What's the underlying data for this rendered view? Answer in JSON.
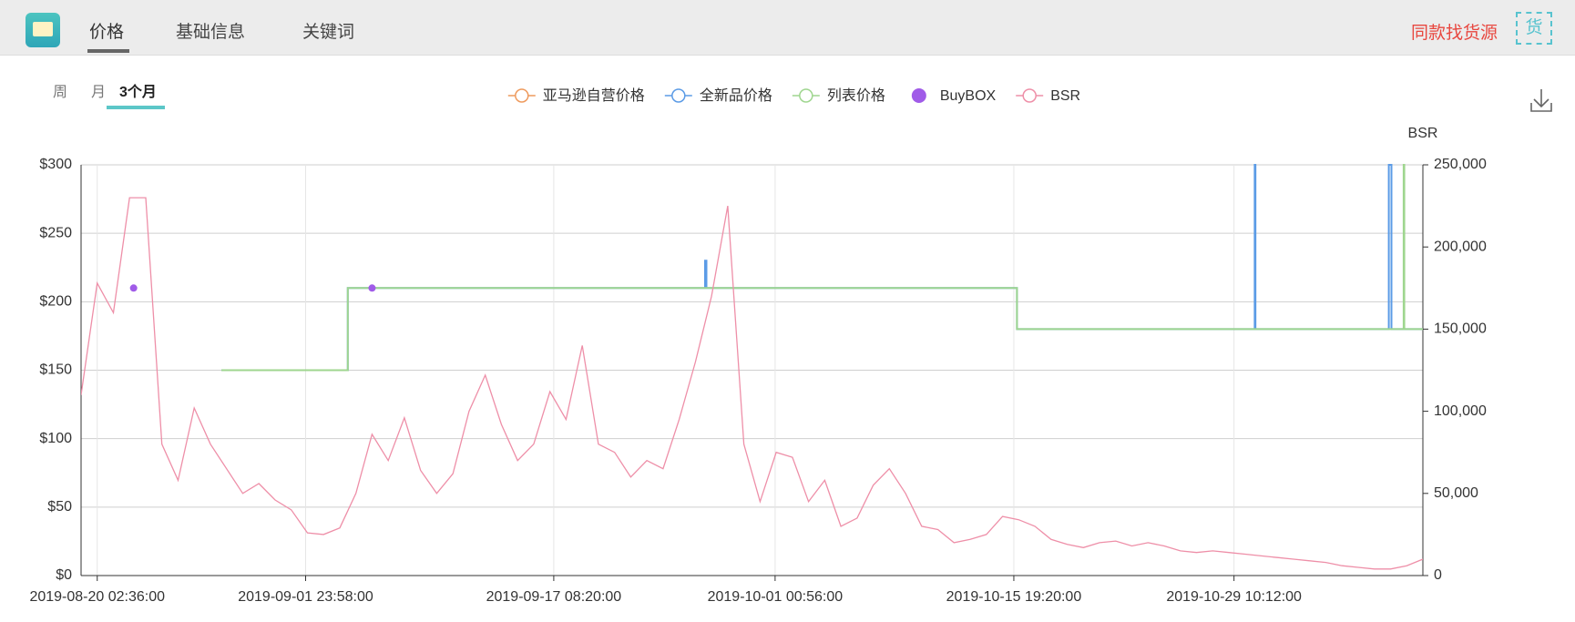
{
  "header": {
    "tabs": [
      "价格",
      "基础信息",
      "关键词"
    ],
    "source_link": "同款找货源",
    "source_icon": "货"
  },
  "period_tabs": [
    "周",
    "月",
    "3个月"
  ],
  "chart_data": {
    "type": "line",
    "xlim": [
      "2019-08-19 02:36",
      "2019-11-10 02:36"
    ],
    "xticks": [
      "2019-08-20 02:36:00",
      "2019-09-01 23:58:00",
      "2019-09-17 08:20:00",
      "2019-10-01 00:56:00",
      "2019-10-15 19:20:00",
      "2019-10-29 10:12:00"
    ],
    "ylim": [
      0,
      300
    ],
    "yticks": [
      {
        "value": 0,
        "label": "$0"
      },
      {
        "value": 50,
        "label": "$50"
      },
      {
        "value": 100,
        "label": "$100"
      },
      {
        "value": 150,
        "label": "$150"
      },
      {
        "value": 200,
        "label": "$200"
      },
      {
        "value": 250,
        "label": "$250"
      },
      {
        "value": 300,
        "label": "$300"
      }
    ],
    "y2label": "BSR",
    "y2lim": [
      0,
      250000
    ],
    "y2ticks": [
      0,
      {
        "value": 50000,
        "label": "50,000"
      },
      {
        "value": 100000,
        "label": "100,000"
      },
      {
        "value": 150000,
        "label": "150,000"
      },
      {
        "value": 200000,
        "label": "200,000"
      },
      {
        "value": 250000,
        "label": "250,000"
      }
    ],
    "grid": true,
    "series": [
      {
        "name": "亚马逊自营价格",
        "color": "#ee9a5d",
        "x": [],
        "values": []
      },
      {
        "name": "全新品价格",
        "color": "#5b9be6",
        "x": [
          "2019-08-27 19:00",
          "2019-09-04 14:36",
          "2019-09-04 14:36",
          "2019-09-26 17:00",
          "2019-09-26 17:00",
          "2019-09-26 19:00",
          "2019-09-26 19:00",
          "2019-10-16 00:00",
          "2019-10-16 00:00",
          "2019-10-30 17:00",
          "2019-10-30 17:00",
          "2019-10-30 18:00",
          "2019-10-30 18:00",
          "2019-11-08 00:00",
          "2019-11-08 00:00",
          "2019-11-08 04:00",
          "2019-11-08 04:00",
          "2019-11-10 02:36"
        ],
        "values": [
          150,
          150,
          210,
          210,
          230,
          230,
          210,
          210,
          180,
          180,
          300,
          300,
          180,
          180,
          300,
          300,
          180,
          180
        ]
      },
      {
        "name": "列表价格",
        "color": "#9fd68f",
        "x": [
          "2019-08-27 19:00",
          "2019-09-04 14:36",
          "2019-09-04 14:36",
          "2019-10-16 00:00",
          "2019-10-16 00:00",
          "2019-11-08 22:00",
          "2019-11-08 22:00",
          "2019-11-08 23:00",
          "2019-11-08 23:00",
          "2019-11-10 02:36"
        ],
        "values": [
          150,
          150,
          210,
          210,
          180,
          180,
          300,
          300,
          180,
          180
        ]
      },
      {
        "name": "BuyBOX",
        "color": "#a05be8",
        "mode": "scatter",
        "x": [
          "2019-08-22 08:36",
          "2019-09-06 02:36"
        ],
        "values": [
          210,
          210
        ]
      },
      {
        "name": "BSR",
        "color": "#ee8fa8",
        "axis": "y2",
        "x": [
          "2019-08-19 02:36",
          "2019-08-20 02:36",
          "2019-08-21 02:36",
          "2019-08-22 02:36",
          "2019-08-23 02:36",
          "2019-08-24 02:36",
          "2019-08-25 02:36",
          "2019-08-26 02:36",
          "2019-08-27 02:36",
          "2019-08-28 02:36",
          "2019-08-29 02:36",
          "2019-08-30 02:36",
          "2019-08-31 02:36",
          "2019-09-01 02:36",
          "2019-09-02 02:36",
          "2019-09-03 02:36",
          "2019-09-04 02:36",
          "2019-09-05 02:36",
          "2019-09-06 02:36",
          "2019-09-07 02:36",
          "2019-09-08 02:36",
          "2019-09-09 02:36",
          "2019-09-10 02:36",
          "2019-09-11 02:36",
          "2019-09-12 02:36",
          "2019-09-13 02:36",
          "2019-09-14 02:36",
          "2019-09-15 02:36",
          "2019-09-16 02:36",
          "2019-09-17 02:36",
          "2019-09-18 02:36",
          "2019-09-19 02:36",
          "2019-09-20 02:36",
          "2019-09-21 02:36",
          "2019-09-22 02:36",
          "2019-09-23 02:36",
          "2019-09-24 02:36",
          "2019-09-25 02:36",
          "2019-09-26 02:36",
          "2019-09-27 02:36",
          "2019-09-28 02:36",
          "2019-09-29 02:36",
          "2019-09-30 02:36",
          "2019-10-01 02:36",
          "2019-10-02 02:36",
          "2019-10-03 02:36",
          "2019-10-04 02:36",
          "2019-10-05 02:36",
          "2019-10-06 02:36",
          "2019-10-07 02:36",
          "2019-10-08 02:36",
          "2019-10-09 02:36",
          "2019-10-10 02:36",
          "2019-10-11 02:36",
          "2019-10-12 02:36",
          "2019-10-13 02:36",
          "2019-10-14 02:36",
          "2019-10-15 02:36",
          "2019-10-16 02:36",
          "2019-10-17 02:36",
          "2019-10-18 02:36",
          "2019-10-19 02:36",
          "2019-10-20 02:36",
          "2019-10-21 02:36",
          "2019-10-22 02:36",
          "2019-10-23 02:36",
          "2019-10-24 02:36",
          "2019-10-25 02:36",
          "2019-10-26 02:36",
          "2019-10-27 02:36",
          "2019-10-28 02:36",
          "2019-10-29 02:36",
          "2019-10-30 02:36",
          "2019-10-31 02:36",
          "2019-11-01 02:36",
          "2019-11-02 02:36",
          "2019-11-03 02:36",
          "2019-11-04 02:36",
          "2019-11-05 02:36",
          "2019-11-06 02:36",
          "2019-11-07 02:36",
          "2019-11-08 02:36",
          "2019-11-09 02:36",
          "2019-11-10 02:36"
        ],
        "values": [
          110000,
          178000,
          160000,
          230000,
          230000,
          80000,
          58000,
          102000,
          80000,
          65000,
          50000,
          56000,
          46000,
          40000,
          26000,
          25000,
          29000,
          50000,
          86000,
          70000,
          96000,
          64000,
          50000,
          62000,
          100000,
          122000,
          92000,
          70000,
          80000,
          112000,
          95000,
          140000,
          80000,
          75000,
          60000,
          70000,
          65000,
          95000,
          130000,
          170000,
          225000,
          80000,
          45000,
          75000,
          72000,
          45000,
          58000,
          30000,
          35000,
          55000,
          65000,
          50000,
          30000,
          28000,
          20000,
          22000,
          25000,
          36000,
          34000,
          30000,
          22000,
          19000,
          17000,
          20000,
          21000,
          18000,
          20000,
          18000,
          15000,
          14000,
          15000,
          14000,
          13000,
          12000,
          11000,
          10000,
          9000,
          8000,
          6000,
          5000,
          4000,
          4000,
          6000,
          10000
        ]
      }
    ]
  }
}
